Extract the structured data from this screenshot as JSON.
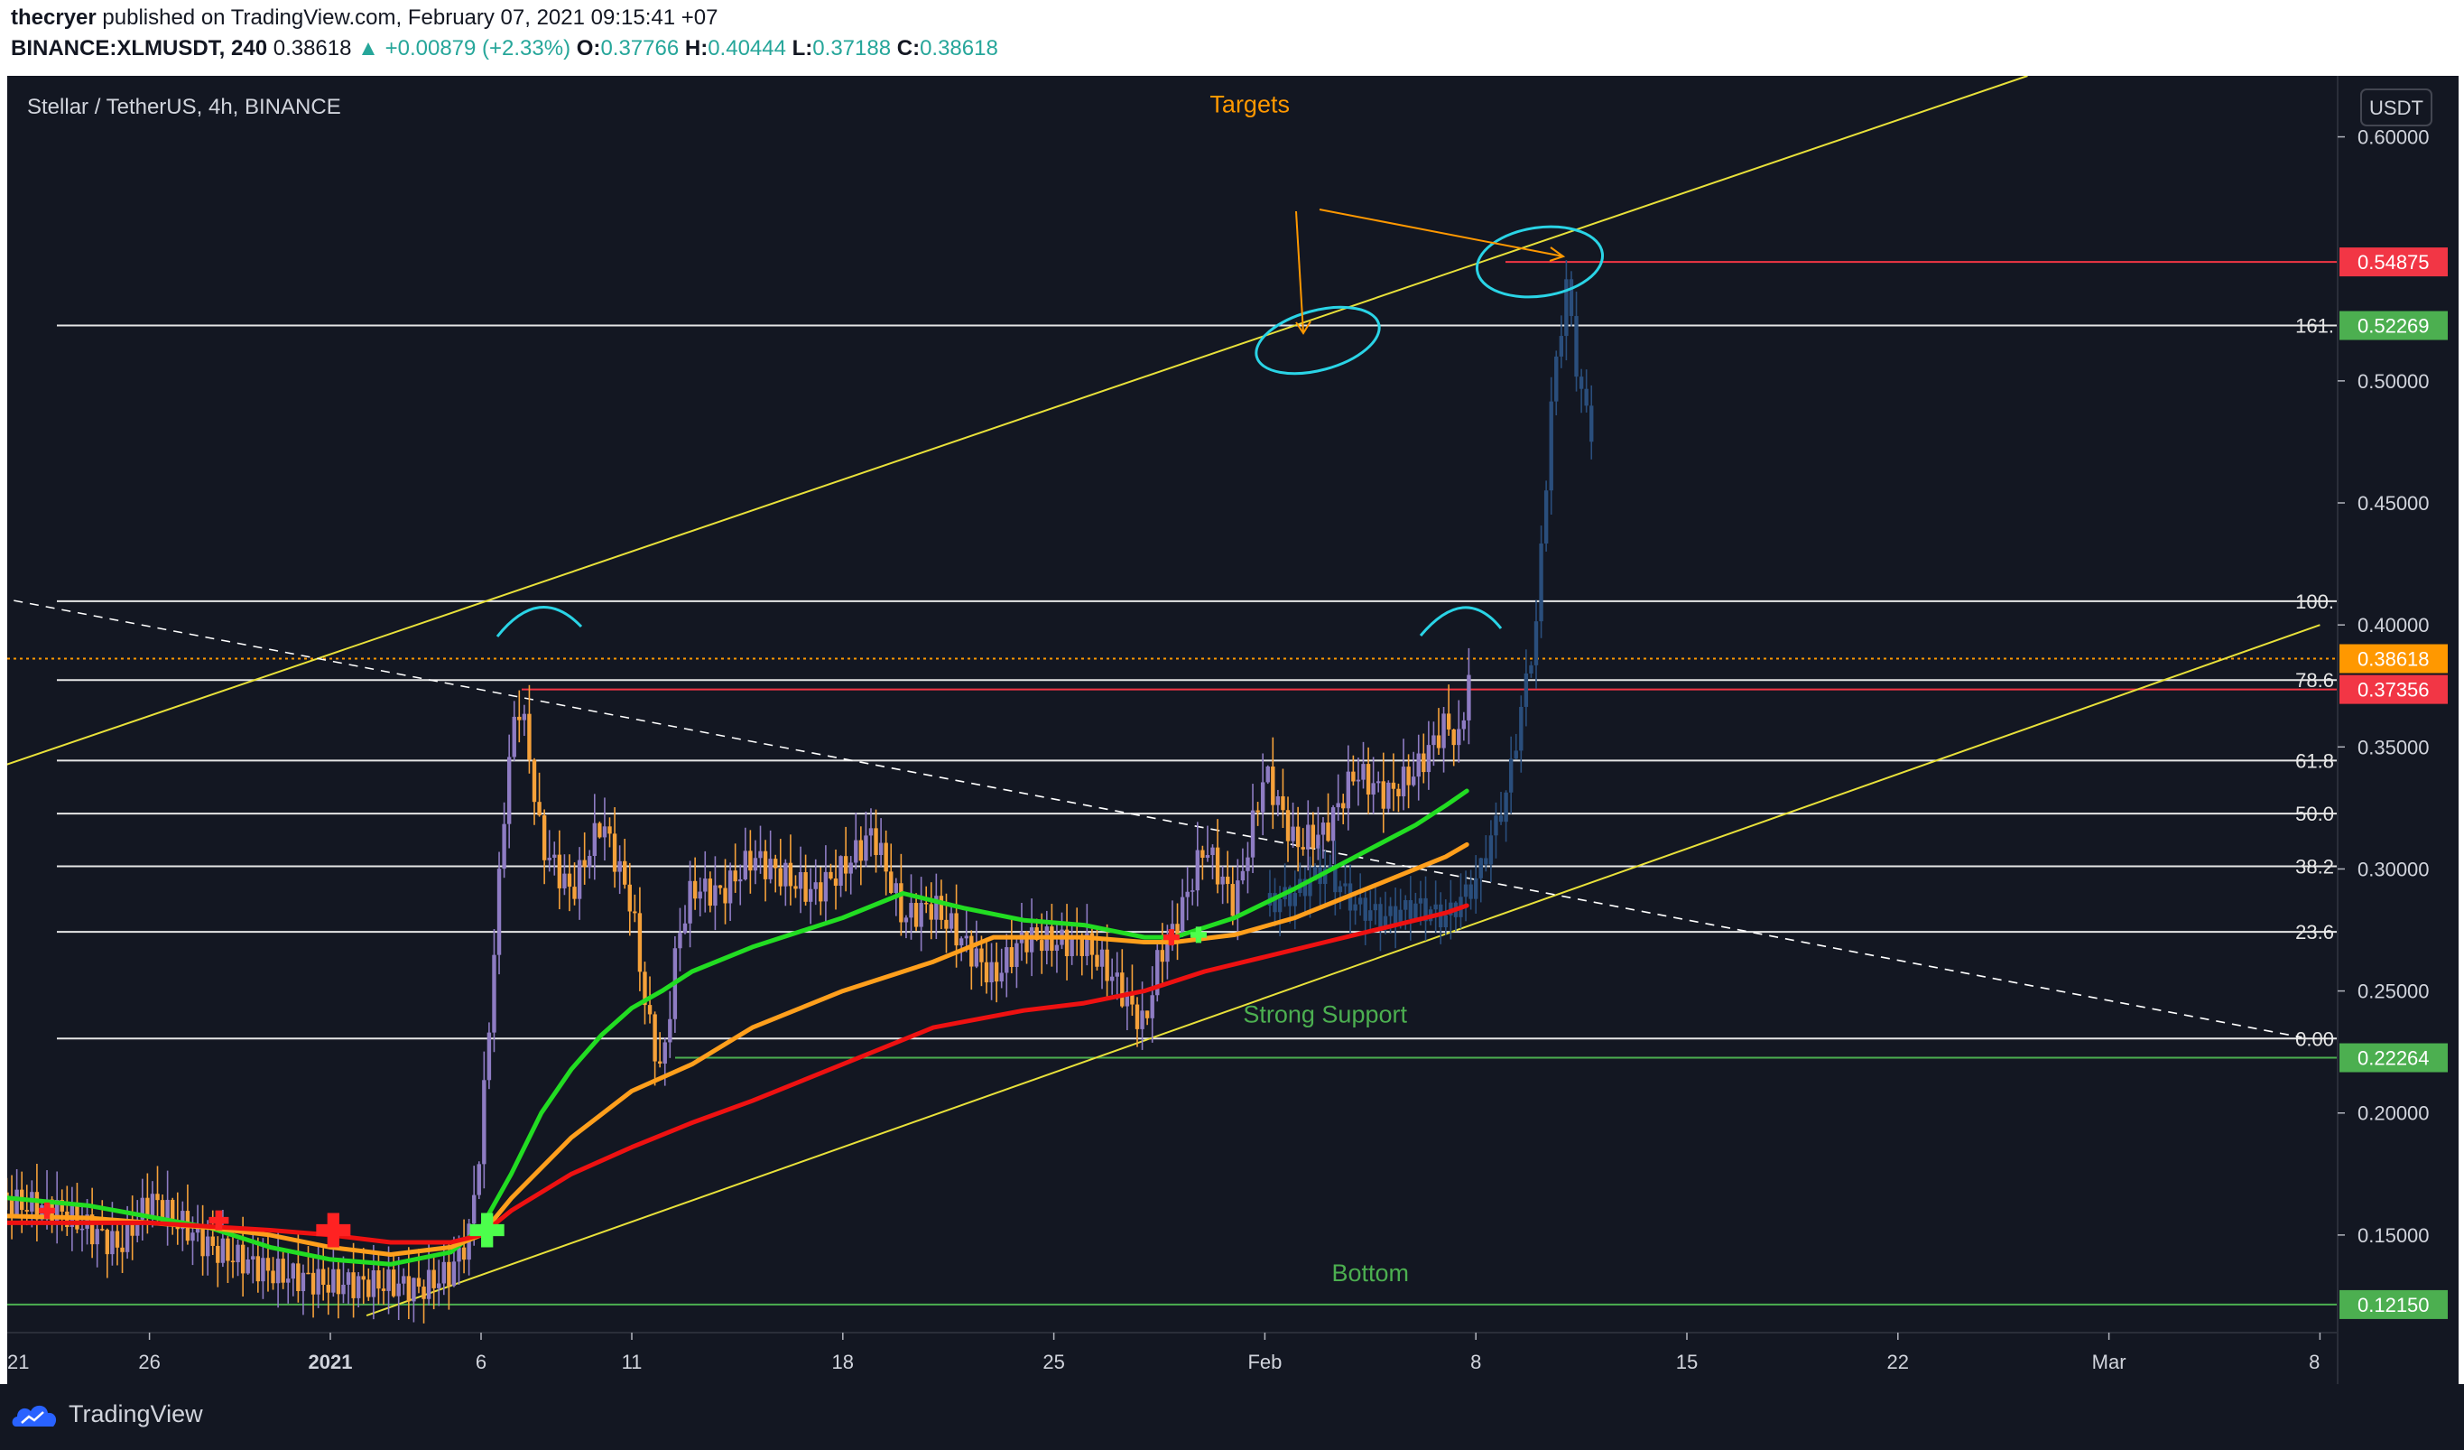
{
  "header": {
    "line1_user": "thecryer",
    "line1_rest": " published on TradingView.com, February 07, 2021 09:15:41 +07",
    "symbol": "BINANCE:XLMUSDT, 240",
    "last": "0.38618",
    "change": "+0.00879 (+2.33%)",
    "o_label": "O:",
    "o": "0.37766",
    "h_label": "H:",
    "h": "0.40444",
    "l_label": "L:",
    "l": "0.37188",
    "c_label": "C:",
    "c": "0.38618"
  },
  "chart_title": "Stellar / TetherUS, 4h, BINANCE",
  "currency_button": "USDT",
  "footer": {
    "brand": "TradingView"
  },
  "colors": {
    "background": "#131722",
    "ema_fast": "#22dd22",
    "ema_mid": "#ff9f1c",
    "ema_slow": "#ee1111",
    "candle_up": "#8e7cc3",
    "candle_down": "#f5a13a",
    "projection": "#2a4e7c",
    "channel": "#e8e13a",
    "annotation_cyan": "#2ad4e6",
    "annotation_orange": "#ff9800",
    "annotation_green": "#4caf50"
  },
  "chart_data": {
    "type": "candlestick",
    "ylim": [
      0.11,
      0.625
    ],
    "yticks": [
      {
        "value": 0.6,
        "label": "0.60000"
      },
      {
        "value": 0.5,
        "label": "0.50000"
      },
      {
        "value": 0.45,
        "label": "0.45000"
      },
      {
        "value": 0.4,
        "label": "0.40000"
      },
      {
        "value": 0.35,
        "label": "0.35000"
      },
      {
        "value": 0.3,
        "label": "0.30000"
      },
      {
        "value": 0.25,
        "label": "0.25000"
      },
      {
        "value": 0.2,
        "label": "0.20000"
      },
      {
        "value": 0.15,
        "label": "0.15000"
      }
    ],
    "price_badges": [
      {
        "value": 0.54875,
        "label": "0.54875",
        "color": "#f23645"
      },
      {
        "value": 0.52269,
        "label": "0.52269",
        "color": "#4caf50"
      },
      {
        "value": 0.38618,
        "label": "0.38618",
        "color": "#ff9800"
      },
      {
        "value": 0.37356,
        "label": "0.37356",
        "color": "#f23645"
      },
      {
        "value": 0.22264,
        "label": "0.22264",
        "color": "#4caf50"
      },
      {
        "value": 0.1215,
        "label": "0.12150",
        "color": "#4caf50"
      }
    ],
    "xticks": [
      {
        "day": -11,
        "label": "21"
      },
      {
        "day": -6,
        "label": "26"
      },
      {
        "day": 0,
        "label": "2021"
      },
      {
        "day": 5,
        "label": "6"
      },
      {
        "day": 10,
        "label": "11"
      },
      {
        "day": 17,
        "label": "18"
      },
      {
        "day": 24,
        "label": "25"
      },
      {
        "day": 31,
        "label": "Feb"
      },
      {
        "day": 38,
        "label": "8"
      },
      {
        "day": 45,
        "label": "15"
      },
      {
        "day": 52,
        "label": "22"
      },
      {
        "day": 59,
        "label": "Mar"
      },
      {
        "day": 66,
        "label": "8"
      }
    ],
    "fib_levels": [
      {
        "value": 0.52269,
        "label": "161."
      },
      {
        "value": 0.4097,
        "label": "100."
      },
      {
        "value": 0.3774,
        "label": "78.6"
      },
      {
        "value": 0.3444,
        "label": "61.8"
      },
      {
        "value": 0.3227,
        "label": "50.0"
      },
      {
        "value": 0.3011,
        "label": "38.2"
      },
      {
        "value": 0.2742,
        "label": "23.6"
      },
      {
        "value": 0.2305,
        "label": "0.00"
      }
    ],
    "horizontal_lines": [
      {
        "value": 0.54875,
        "color": "#f23645"
      },
      {
        "value": 0.37356,
        "color": "#f23645"
      },
      {
        "value": 0.38618,
        "color": "#ff9800",
        "style": "dotted"
      },
      {
        "value": 0.22264,
        "color": "#4caf50"
      },
      {
        "value": 0.1215,
        "color": "#4caf50"
      }
    ],
    "trendlines": [
      {
        "from": [
          -11.4,
          0.34
        ],
        "to": [
          56.3,
          0.625
        ],
        "color": "#e8e13a"
      },
      {
        "from": [
          1.2,
          0.117
        ],
        "to": [
          66,
          0.4
        ],
        "color": "#e8e13a"
      },
      {
        "from": [
          -10.5,
          0.41
        ],
        "to": [
          65.4,
          0.231
        ],
        "color": "#ffffff",
        "style": "dashed"
      }
    ],
    "series": [
      {
        "name": "",
        "color": "#22dd22",
        "points": [
          [
            -11.4,
            0.166
          ],
          [
            -8,
            0.162
          ],
          [
            -4,
            0.153
          ],
          [
            -2,
            0.145
          ],
          [
            0,
            0.14
          ],
          [
            2,
            0.138
          ],
          [
            4,
            0.143
          ],
          [
            5,
            0.153
          ],
          [
            6,
            0.175
          ],
          [
            7,
            0.2
          ],
          [
            8,
            0.218
          ],
          [
            9,
            0.232
          ],
          [
            10,
            0.243
          ],
          [
            11,
            0.25
          ],
          [
            12,
            0.258
          ],
          [
            14,
            0.268
          ],
          [
            17,
            0.28
          ],
          [
            19,
            0.29
          ],
          [
            21,
            0.284
          ],
          [
            23,
            0.279
          ],
          [
            25,
            0.277
          ],
          [
            27,
            0.272
          ],
          [
            28,
            0.272
          ],
          [
            30,
            0.28
          ],
          [
            32,
            0.292
          ],
          [
            34,
            0.305
          ],
          [
            36,
            0.318
          ],
          [
            37,
            0.326
          ],
          [
            37.7,
            0.332
          ]
        ]
      },
      {
        "name": "",
        "color": "#ff9f1c",
        "points": [
          [
            -11.4,
            0.158
          ],
          [
            -8,
            0.157
          ],
          [
            -4,
            0.153
          ],
          [
            -2,
            0.15
          ],
          [
            0,
            0.145
          ],
          [
            2,
            0.142
          ],
          [
            4,
            0.145
          ],
          [
            5,
            0.15
          ],
          [
            6,
            0.165
          ],
          [
            8,
            0.19
          ],
          [
            10,
            0.209
          ],
          [
            12,
            0.22
          ],
          [
            14,
            0.235
          ],
          [
            17,
            0.25
          ],
          [
            20,
            0.262
          ],
          [
            22,
            0.272
          ],
          [
            25,
            0.272
          ],
          [
            27,
            0.27
          ],
          [
            28,
            0.27
          ],
          [
            30,
            0.273
          ],
          [
            32,
            0.28
          ],
          [
            34,
            0.29
          ],
          [
            36,
            0.3
          ],
          [
            37,
            0.305
          ],
          [
            37.7,
            0.31
          ]
        ]
      },
      {
        "name": "",
        "color": "#ee1111",
        "points": [
          [
            -11.4,
            0.155
          ],
          [
            -6,
            0.155
          ],
          [
            -2,
            0.152
          ],
          [
            0,
            0.15
          ],
          [
            2,
            0.147
          ],
          [
            4,
            0.147
          ],
          [
            5,
            0.15
          ],
          [
            6,
            0.16
          ],
          [
            8,
            0.175
          ],
          [
            10,
            0.186
          ],
          [
            12,
            0.196
          ],
          [
            14,
            0.205
          ],
          [
            17,
            0.22
          ],
          [
            20,
            0.235
          ],
          [
            23,
            0.242
          ],
          [
            25,
            0.245
          ],
          [
            27,
            0.25
          ],
          [
            29,
            0.258
          ],
          [
            31,
            0.264
          ],
          [
            33,
            0.27
          ],
          [
            35,
            0.276
          ],
          [
            37,
            0.282
          ],
          [
            37.7,
            0.285
          ]
        ]
      }
    ],
    "ohlc_path": [
      [
        -11.4,
        0.165
      ],
      [
        -9,
        0.16
      ],
      [
        -7,
        0.145
      ],
      [
        -6,
        0.165
      ],
      [
        -4,
        0.145
      ],
      [
        -2,
        0.135
      ],
      [
        0,
        0.13
      ],
      [
        2,
        0.13
      ],
      [
        3,
        0.128
      ],
      [
        4,
        0.135
      ],
      [
        4.6,
        0.15
      ],
      [
        5,
        0.19
      ],
      [
        5.4,
        0.26
      ],
      [
        5.8,
        0.33
      ],
      [
        6.2,
        0.37
      ],
      [
        6.5,
        0.355
      ],
      [
        7,
        0.31
      ],
      [
        7.5,
        0.3
      ],
      [
        8,
        0.29
      ],
      [
        9,
        0.32
      ],
      [
        10,
        0.285
      ],
      [
        10.5,
        0.24
      ],
      [
        11,
        0.215
      ],
      [
        11.5,
        0.27
      ],
      [
        12,
        0.292
      ],
      [
        13,
        0.29
      ],
      [
        14,
        0.305
      ],
      [
        16,
        0.29
      ],
      [
        17,
        0.3
      ],
      [
        18,
        0.315
      ],
      [
        19,
        0.28
      ],
      [
        20,
        0.285
      ],
      [
        21,
        0.27
      ],
      [
        22,
        0.255
      ],
      [
        23,
        0.272
      ],
      [
        24,
        0.27
      ],
      [
        25,
        0.27
      ],
      [
        26,
        0.255
      ],
      [
        27,
        0.235
      ],
      [
        27.5,
        0.265
      ],
      [
        28,
        0.275
      ],
      [
        29,
        0.31
      ],
      [
        30,
        0.285
      ],
      [
        31,
        0.34
      ],
      [
        32,
        0.31
      ],
      [
        33,
        0.315
      ],
      [
        34,
        0.34
      ],
      [
        35,
        0.33
      ],
      [
        36,
        0.34
      ],
      [
        37,
        0.36
      ],
      [
        37.5,
        0.35
      ],
      [
        37.7,
        0.38
      ]
    ],
    "projection_path": [
      [
        31,
        0.285
      ],
      [
        32,
        0.29
      ],
      [
        33,
        0.3
      ],
      [
        34,
        0.285
      ],
      [
        35,
        0.28
      ],
      [
        36,
        0.285
      ],
      [
        37,
        0.28
      ],
      [
        38,
        0.295
      ],
      [
        39,
        0.33
      ],
      [
        40,
        0.4
      ],
      [
        40.5,
        0.49
      ],
      [
        41,
        0.54
      ],
      [
        41.4,
        0.5
      ],
      [
        41.8,
        0.48
      ]
    ],
    "annotations": [
      {
        "text": "Targets",
        "at": [
          30.5,
          0.61
        ],
        "color": "#ff9800"
      },
      {
        "text": "Strong Support",
        "at": [
          33,
          0.237
        ],
        "color": "#4caf50"
      },
      {
        "text": "Bottom",
        "at": [
          34.5,
          0.131
        ],
        "color": "#4caf50"
      }
    ]
  }
}
